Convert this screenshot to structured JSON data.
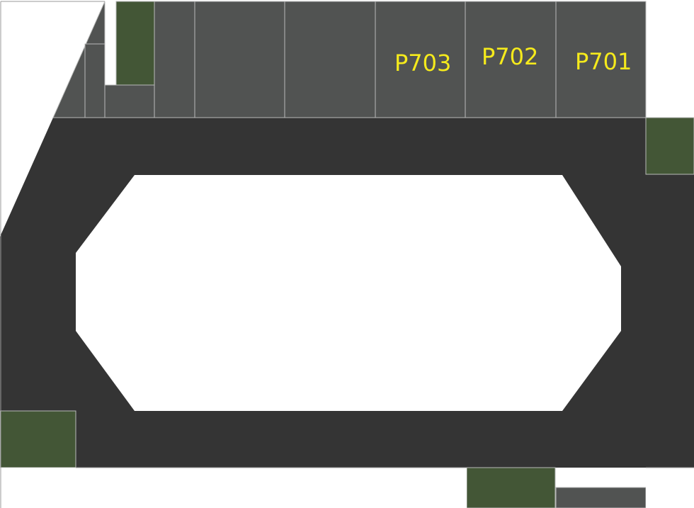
{
  "colors": {
    "road": "#343434",
    "lot": "#515352",
    "green": "#435636",
    "open": "#ffffff",
    "lot_border": "#b9bab9",
    "label": "#f5ea1c"
  },
  "labels": {
    "p703": "P703",
    "p702": "P702",
    "p701": "P701"
  }
}
